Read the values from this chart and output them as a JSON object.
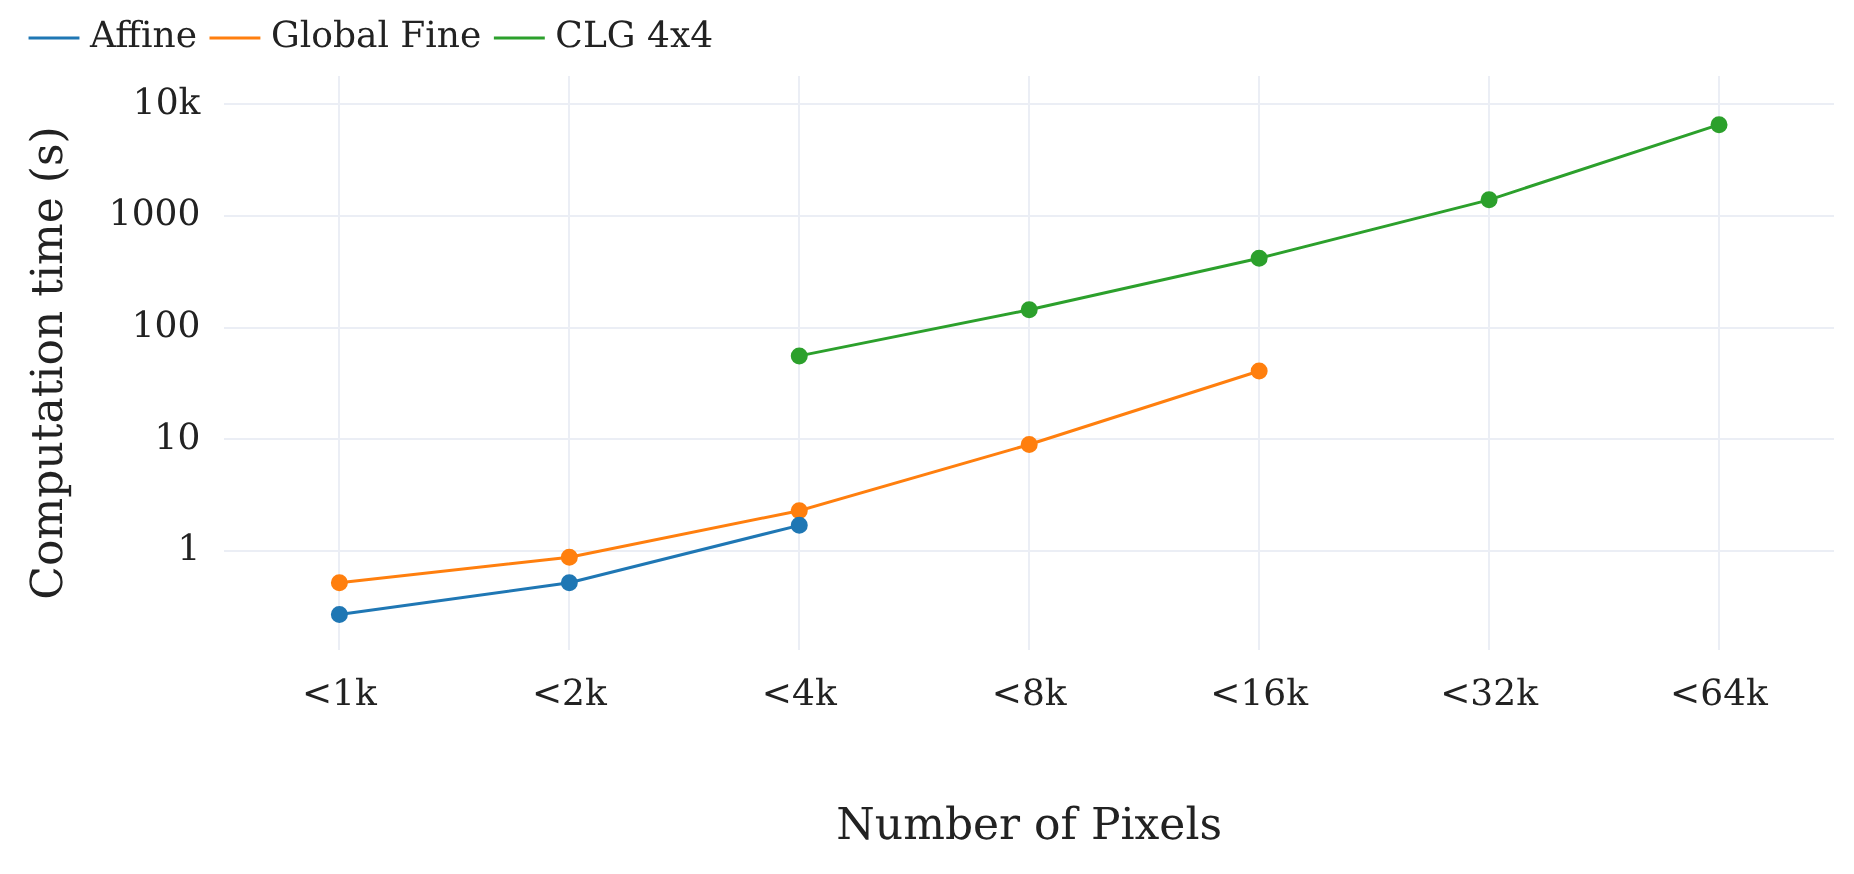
{
  "chart_data": {
    "type": "line",
    "xlabel": "Number of Pixels",
    "ylabel": "Computation time (s)",
    "categories": [
      "<1k",
      "<2k",
      "<4k",
      "<8k",
      "<16k",
      "<32k",
      "<64k"
    ],
    "series": [
      {
        "name": "Affine",
        "color": "#1f77b4",
        "values": [
          0.27,
          0.52,
          1.7,
          null,
          null,
          null,
          null
        ]
      },
      {
        "name": "Global Fine",
        "color": "#ff7f0e",
        "values": [
          0.52,
          0.88,
          2.3,
          9,
          41,
          null,
          null
        ]
      },
      {
        "name": "CLG 4x4",
        "color": "#2ca02c",
        "values": [
          null,
          null,
          56,
          145,
          420,
          1400,
          6600
        ]
      }
    ],
    "log": "y",
    "ylim": [
      0.13,
      18000
    ],
    "yticks": [
      1,
      10,
      100,
      1000,
      {
        "value": 10000,
        "label": "10k"
      }
    ],
    "grid": true,
    "legend": "top left",
    "marker": "circle",
    "line_style": "solid"
  }
}
